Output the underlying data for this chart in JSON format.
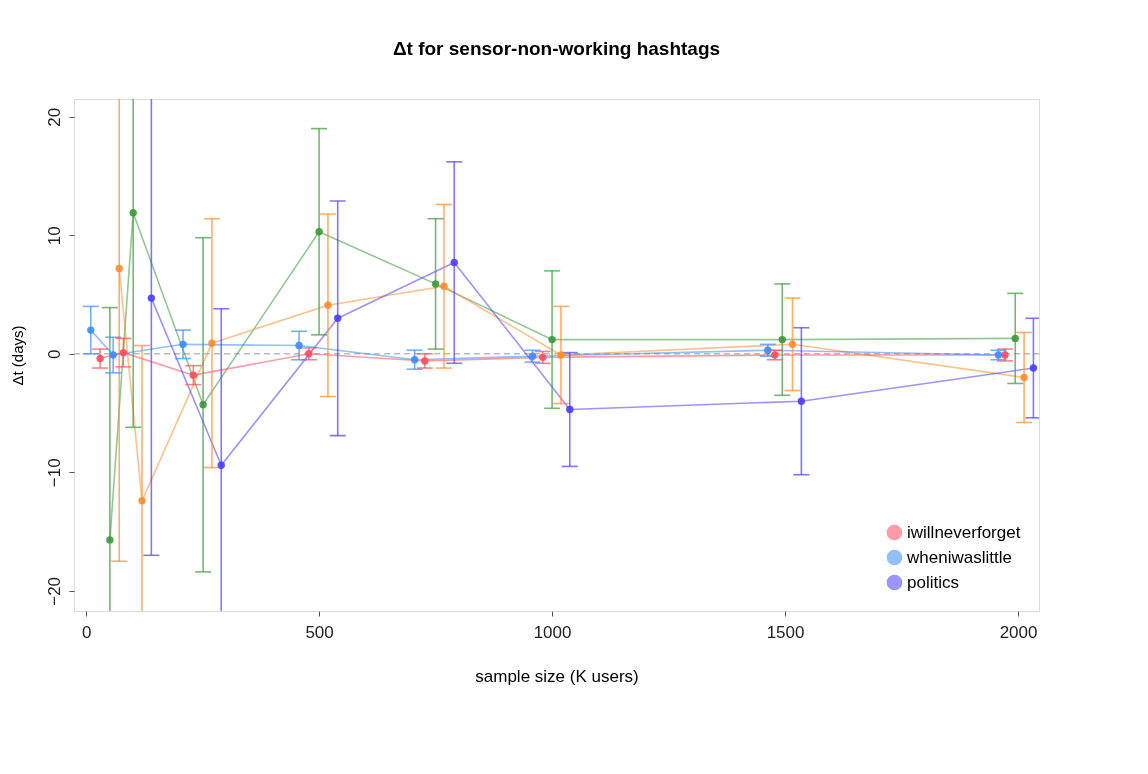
{
  "chart_data": {
    "type": "line",
    "title": "Δt for sensor-non-working hashtags",
    "xlabel": "sample size (K users)",
    "ylabel": "Δt (days)",
    "xlim": [
      -26,
      2045
    ],
    "ylim": [
      -21.7,
      21.5
    ],
    "xticks": [
      0,
      500,
      1000,
      1500,
      2000
    ],
    "yticks": [
      -20,
      -10,
      0,
      10,
      20
    ],
    "grid": false,
    "legend": "bottom right",
    "marker": "circle",
    "line_style": "solid",
    "ref_lines": [
      {
        "axis": "y",
        "value": 0,
        "color": "#bbbbbb",
        "line_style": "dashed"
      }
    ],
    "series": [
      {
        "color": "#3a9a3a",
        "x": [
          51,
          101,
          251,
          500,
          750,
          1000,
          1494,
          1994
        ],
        "values": [
          -15.7,
          11.9,
          -4.3,
          10.3,
          5.9,
          1.2,
          1.2,
          1.3
        ],
        "errors": [
          19.6,
          18.1,
          14.1,
          8.7,
          5.5,
          5.8,
          4.7,
          3.8
        ]
      },
      {
        "color": "#ff8c2e",
        "x": [
          71,
          120,
          270,
          519,
          768,
          1019,
          1516,
          2013
        ],
        "values": [
          7.2,
          -12.4,
          0.9,
          4.1,
          5.7,
          -0.1,
          0.8,
          -2.0
        ],
        "errors": [
          24.7,
          13.1,
          10.5,
          7.7,
          6.9,
          4.1,
          3.9,
          3.8
        ]
      },
      {
        "name": "iwillneverforget",
        "color": "#ff4d5e",
        "x": [
          30,
          80,
          230,
          478,
          727,
          980,
          1478,
          1972
        ],
        "values": [
          -0.4,
          0.1,
          -1.8,
          0.0,
          -0.6,
          -0.3,
          -0.1,
          -0.1
        ],
        "errors": [
          0.8,
          1.2,
          0.8,
          0.5,
          0.6,
          0.5,
          0.4,
          0.5
        ]
      },
      {
        "name": "wheniwaslittle",
        "color": "#3d8bff",
        "x": [
          10,
          58,
          208,
          457,
          705,
          958,
          1463,
          1958
        ],
        "values": [
          2.0,
          -0.1,
          0.8,
          0.7,
          -0.5,
          -0.2,
          0.3,
          -0.1
        ],
        "errors": [
          2.0,
          1.5,
          1.2,
          1.2,
          0.8,
          0.5,
          0.5,
          0.4
        ]
      },
      {
        "name": "politics",
        "color": "#4a3dff",
        "x": [
          140,
          290,
          540,
          790,
          1038,
          1535,
          2033
        ],
        "values": [
          4.7,
          -9.4,
          3.0,
          7.7,
          -4.7,
          -4.0,
          -1.2
        ],
        "errors": [
          21.7,
          13.2,
          9.9,
          8.5,
          4.8,
          6.2,
          4.2
        ]
      }
    ]
  }
}
